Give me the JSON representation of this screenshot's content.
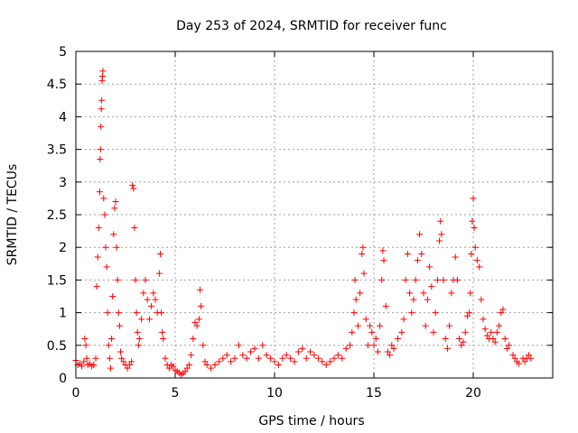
{
  "chart_data": {
    "type": "scatter",
    "title": "Day 253 of 2024, SRMTID for receiver func",
    "xlabel": "GPS time / hours",
    "ylabel": "SRMTID / TECUs",
    "xlim": [
      0,
      24
    ],
    "ylim": [
      0,
      5
    ],
    "xticks": [
      0,
      5,
      10,
      15,
      20
    ],
    "yticks": [
      0,
      0.5,
      1,
      1.5,
      2,
      2.5,
      3,
      3.5,
      4,
      4.5,
      5
    ],
    "xtick_labels": [
      "0",
      "5",
      "10",
      "15",
      "20"
    ],
    "ytick_labels": [
      "0",
      "0.5",
      "1",
      "1.5",
      "2",
      "2.5",
      "3",
      "3.5",
      "4",
      "4.5",
      "5"
    ],
    "grid": true,
    "marker": "plus",
    "color": "#ff0000",
    "series": [
      {
        "name": "func",
        "points": [
          [
            0.0,
            0.27
          ],
          [
            0.1,
            0.2
          ],
          [
            0.2,
            0.22
          ],
          [
            0.3,
            0.18
          ],
          [
            0.4,
            0.25
          ],
          [
            0.45,
            0.6
          ],
          [
            0.5,
            0.5
          ],
          [
            0.55,
            0.3
          ],
          [
            0.6,
            0.2
          ],
          [
            0.7,
            0.22
          ],
          [
            0.8,
            0.18
          ],
          [
            0.9,
            0.2
          ],
          [
            1.0,
            0.3
          ],
          [
            1.05,
            1.4
          ],
          [
            1.1,
            1.85
          ],
          [
            1.15,
            2.3
          ],
          [
            1.2,
            2.85
          ],
          [
            1.22,
            3.35
          ],
          [
            1.24,
            3.5
          ],
          [
            1.26,
            3.85
          ],
          [
            1.28,
            4.12
          ],
          [
            1.3,
            4.25
          ],
          [
            1.32,
            4.55
          ],
          [
            1.34,
            4.62
          ],
          [
            1.36,
            4.7
          ],
          [
            1.4,
            2.75
          ],
          [
            1.45,
            2.5
          ],
          [
            1.5,
            2.0
          ],
          [
            1.55,
            1.7
          ],
          [
            1.6,
            1.0
          ],
          [
            1.65,
            0.5
          ],
          [
            1.7,
            0.3
          ],
          [
            1.75,
            0.15
          ],
          [
            1.8,
            0.6
          ],
          [
            1.85,
            1.25
          ],
          [
            1.9,
            2.2
          ],
          [
            1.95,
            2.6
          ],
          [
            2.0,
            2.7
          ],
          [
            2.05,
            2.0
          ],
          [
            2.1,
            1.5
          ],
          [
            2.15,
            1.0
          ],
          [
            2.2,
            0.8
          ],
          [
            2.25,
            0.4
          ],
          [
            2.3,
            0.3
          ],
          [
            2.4,
            0.25
          ],
          [
            2.5,
            0.2
          ],
          [
            2.6,
            0.15
          ],
          [
            2.7,
            0.2
          ],
          [
            2.8,
            0.25
          ],
          [
            2.85,
            2.95
          ],
          [
            2.9,
            2.9
          ],
          [
            2.95,
            2.3
          ],
          [
            3.0,
            1.5
          ],
          [
            3.05,
            1.0
          ],
          [
            3.1,
            0.7
          ],
          [
            3.15,
            0.5
          ],
          [
            3.2,
            0.6
          ],
          [
            3.3,
            0.9
          ],
          [
            3.4,
            1.3
          ],
          [
            3.5,
            1.5
          ],
          [
            3.6,
            1.2
          ],
          [
            3.7,
            0.9
          ],
          [
            3.8,
            1.1
          ],
          [
            3.9,
            1.3
          ],
          [
            4.0,
            1.2
          ],
          [
            4.1,
            1.0
          ],
          [
            4.2,
            1.6
          ],
          [
            4.25,
            1.9
          ],
          [
            4.3,
            1.0
          ],
          [
            4.35,
            0.7
          ],
          [
            4.4,
            0.6
          ],
          [
            4.5,
            0.3
          ],
          [
            4.6,
            0.2
          ],
          [
            4.7,
            0.15
          ],
          [
            4.8,
            0.2
          ],
          [
            4.9,
            0.18
          ],
          [
            5.0,
            0.12
          ],
          [
            5.1,
            0.1
          ],
          [
            5.2,
            0.08
          ],
          [
            5.3,
            0.05
          ],
          [
            5.4,
            0.07
          ],
          [
            5.5,
            0.1
          ],
          [
            5.6,
            0.15
          ],
          [
            5.7,
            0.2
          ],
          [
            5.8,
            0.35
          ],
          [
            5.9,
            0.6
          ],
          [
            6.0,
            0.85
          ],
          [
            6.1,
            0.8
          ],
          [
            6.2,
            0.9
          ],
          [
            6.25,
            1.35
          ],
          [
            6.3,
            1.1
          ],
          [
            6.4,
            0.5
          ],
          [
            6.5,
            0.25
          ],
          [
            6.6,
            0.2
          ],
          [
            6.8,
            0.15
          ],
          [
            7.0,
            0.2
          ],
          [
            7.2,
            0.25
          ],
          [
            7.4,
            0.3
          ],
          [
            7.6,
            0.35
          ],
          [
            7.8,
            0.25
          ],
          [
            8.0,
            0.3
          ],
          [
            8.2,
            0.5
          ],
          [
            8.4,
            0.35
          ],
          [
            8.6,
            0.3
          ],
          [
            8.8,
            0.4
          ],
          [
            9.0,
            0.45
          ],
          [
            9.2,
            0.3
          ],
          [
            9.4,
            0.5
          ],
          [
            9.6,
            0.35
          ],
          [
            9.8,
            0.3
          ],
          [
            10.0,
            0.25
          ],
          [
            10.2,
            0.2
          ],
          [
            10.4,
            0.3
          ],
          [
            10.6,
            0.35
          ],
          [
            10.8,
            0.3
          ],
          [
            11.0,
            0.25
          ],
          [
            11.2,
            0.4
          ],
          [
            11.4,
            0.45
          ],
          [
            11.6,
            0.3
          ],
          [
            11.8,
            0.4
          ],
          [
            12.0,
            0.35
          ],
          [
            12.2,
            0.3
          ],
          [
            12.4,
            0.25
          ],
          [
            12.6,
            0.2
          ],
          [
            12.8,
            0.25
          ],
          [
            13.0,
            0.3
          ],
          [
            13.2,
            0.35
          ],
          [
            13.4,
            0.3
          ],
          [
            13.6,
            0.45
          ],
          [
            13.8,
            0.5
          ],
          [
            13.9,
            0.7
          ],
          [
            14.0,
            1.0
          ],
          [
            14.05,
            1.5
          ],
          [
            14.1,
            1.2
          ],
          [
            14.2,
            0.8
          ],
          [
            14.3,
            1.3
          ],
          [
            14.4,
            1.9
          ],
          [
            14.45,
            2.0
          ],
          [
            14.5,
            1.6
          ],
          [
            14.6,
            0.9
          ],
          [
            14.7,
            0.5
          ],
          [
            14.8,
            0.8
          ],
          [
            14.9,
            0.7
          ],
          [
            15.0,
            0.5
          ],
          [
            15.1,
            0.6
          ],
          [
            15.2,
            0.4
          ],
          [
            15.3,
            0.8
          ],
          [
            15.4,
            1.5
          ],
          [
            15.45,
            1.95
          ],
          [
            15.5,
            1.8
          ],
          [
            15.6,
            1.1
          ],
          [
            15.7,
            0.4
          ],
          [
            15.8,
            0.35
          ],
          [
            15.9,
            0.5
          ],
          [
            16.0,
            0.45
          ],
          [
            16.2,
            0.6
          ],
          [
            16.4,
            0.7
          ],
          [
            16.5,
            0.9
          ],
          [
            16.6,
            1.5
          ],
          [
            16.7,
            1.9
          ],
          [
            16.8,
            1.3
          ],
          [
            16.9,
            1.0
          ],
          [
            17.0,
            1.2
          ],
          [
            17.1,
            1.5
          ],
          [
            17.2,
            1.8
          ],
          [
            17.3,
            2.2
          ],
          [
            17.4,
            1.9
          ],
          [
            17.5,
            1.3
          ],
          [
            17.6,
            0.8
          ],
          [
            17.7,
            1.2
          ],
          [
            17.8,
            1.7
          ],
          [
            17.9,
            1.4
          ],
          [
            18.0,
            0.7
          ],
          [
            18.1,
            1.0
          ],
          [
            18.2,
            1.5
          ],
          [
            18.3,
            2.1
          ],
          [
            18.35,
            2.4
          ],
          [
            18.4,
            2.2
          ],
          [
            18.5,
            1.5
          ],
          [
            18.6,
            0.6
          ],
          [
            18.7,
            0.45
          ],
          [
            18.8,
            0.8
          ],
          [
            18.9,
            1.3
          ],
          [
            19.0,
            1.5
          ],
          [
            19.1,
            1.85
          ],
          [
            19.2,
            1.5
          ],
          [
            19.3,
            0.6
          ],
          [
            19.4,
            0.5
          ],
          [
            19.5,
            0.55
          ],
          [
            19.6,
            0.7
          ],
          [
            19.7,
            0.95
          ],
          [
            19.8,
            1.0
          ],
          [
            19.85,
            1.3
          ],
          [
            19.9,
            1.9
          ],
          [
            19.95,
            2.4
          ],
          [
            20.0,
            2.75
          ],
          [
            20.05,
            2.3
          ],
          [
            20.1,
            2.0
          ],
          [
            20.2,
            1.8
          ],
          [
            20.3,
            1.7
          ],
          [
            20.4,
            1.2
          ],
          [
            20.5,
            0.9
          ],
          [
            20.6,
            0.75
          ],
          [
            20.7,
            0.65
          ],
          [
            20.8,
            0.6
          ],
          [
            20.9,
            0.7
          ],
          [
            21.0,
            0.6
          ],
          [
            21.1,
            0.55
          ],
          [
            21.2,
            0.7
          ],
          [
            21.3,
            0.8
          ],
          [
            21.4,
            1.0
          ],
          [
            21.5,
            1.05
          ],
          [
            21.6,
            0.6
          ],
          [
            21.7,
            0.45
          ],
          [
            21.8,
            0.5
          ],
          [
            22.0,
            0.35
          ],
          [
            22.1,
            0.3
          ],
          [
            22.2,
            0.25
          ],
          [
            22.3,
            0.22
          ],
          [
            22.5,
            0.3
          ],
          [
            22.6,
            0.25
          ],
          [
            22.7,
            0.3
          ],
          [
            22.8,
            0.35
          ],
          [
            22.9,
            0.3
          ]
        ]
      }
    ]
  }
}
